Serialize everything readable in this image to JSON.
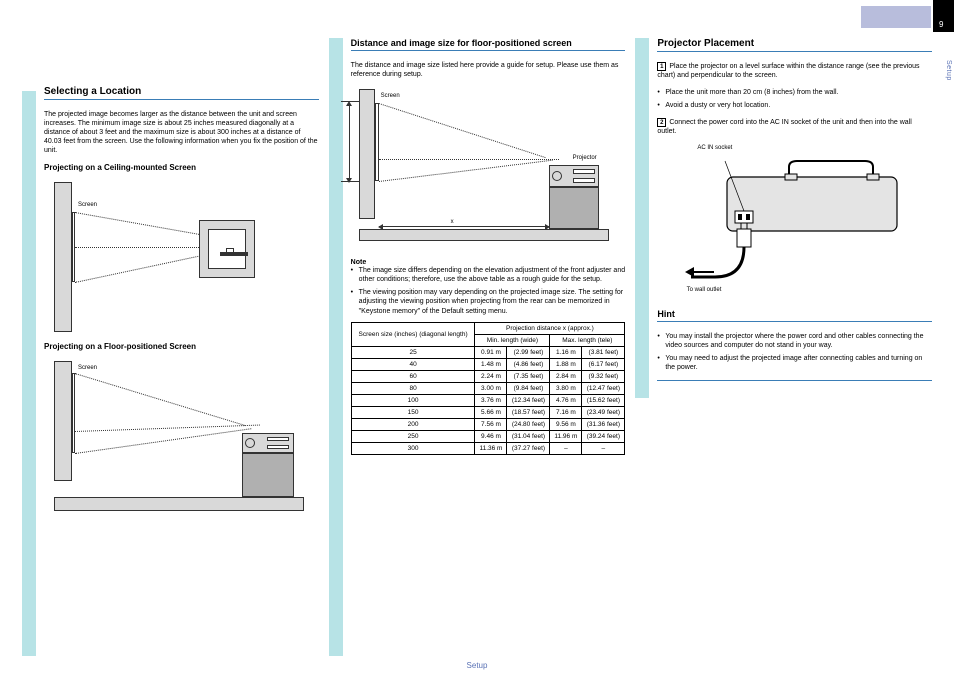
{
  "page": {
    "footer": "Setup",
    "side_label": "Setup",
    "page_number": "9"
  },
  "col1": {
    "title": "Selecting a Location",
    "p1": "The projected image becomes larger as the distance between the unit and screen increases. The minimum image size is about 25 inches measured diagonally at a distance of about 3 feet and the maximum size is about 300 inches at a distance of 40.03 feet from the screen. Use the following information when you fix the position of the unit.",
    "sub1": "Projecting on a Ceiling-mounted Screen",
    "dia1_label": "Screen",
    "sub2": "Projecting on a Floor-positioned Screen",
    "dia2_label": "Screen"
  },
  "col2": {
    "title": "Distance and image size for floor-positioned screen",
    "p1": "The distance and image size listed here provide a guide for setup. Please use them as reference during setup.",
    "dia": {
      "screen_label": "Screen",
      "x_label": "x",
      "proj_label": "Projector"
    },
    "note_label": "Note",
    "note1": "The image size differs depending on the elevation adjustment of the front adjuster and other conditions; therefore, use the above table as a rough guide for the setup.",
    "note2": "The viewing position may vary depending on the projected image size. The setting for adjusting the viewing position when projecting from the rear can be memorized in \"Keystone memory\" of the Default setting menu.",
    "table": {
      "type": "table",
      "hdr_size": "Screen size\n(inches)\n(diagonal length)",
      "hdr_dist": "Projection distance x\n(approx.)",
      "hdr_min": "Min. length\n(wide)",
      "hdr_max": "Max. length\n(tele)",
      "columns": [
        "size",
        "min_m",
        "min_ft",
        "max_m",
        "max_ft"
      ],
      "rows": [
        [
          "25",
          "0.91 m",
          "(2.99 feet)",
          "1.16 m",
          "(3.81 feet)"
        ],
        [
          "40",
          "1.48 m",
          "(4.86 feet)",
          "1.88 m",
          "(6.17 feet)"
        ],
        [
          "60",
          "2.24 m",
          "(7.35 feet)",
          "2.84 m",
          "(9.32 feet)"
        ],
        [
          "80",
          "3.00 m",
          "(9.84 feet)",
          "3.80 m",
          "(12.47 feet)"
        ],
        [
          "100",
          "3.76 m",
          "(12.34 feet)",
          "4.76 m",
          "(15.62 feet)"
        ],
        [
          "150",
          "5.66 m",
          "(18.57 feet)",
          "7.16 m",
          "(23.49 feet)"
        ],
        [
          "200",
          "7.56 m",
          "(24.80 feet)",
          "9.56 m",
          "(31.36 feet)"
        ],
        [
          "250",
          "9.46 m",
          "(31.04 feet)",
          "11.96 m",
          "(39.24 feet)"
        ],
        [
          "300",
          "11.36 m",
          "(37.27 feet)",
          "–",
          "–"
        ]
      ]
    }
  },
  "col3": {
    "title": "Projector Placement",
    "intro_num": "1",
    "intro_text": "Place the projector on a level surface within the distance range (see the previous chart) and perpendicular to the screen.",
    "b1": "Place the unit more than 20 cm (8 inches) from the wall.",
    "b2": "Avoid a dusty or very hot location.",
    "p2_num": "2",
    "p2_text": "Connect the power cord into the AC IN socket of the unit and then into the wall outlet.",
    "dia": {
      "label1": "AC IN socket",
      "label2": "To wall outlet",
      "arrow_color": "#000000",
      "body_fill": "#e4e4e4",
      "stroke": "#000000"
    },
    "hint": {
      "title": "Hint",
      "h1": "You may install the projector where the power cord and other cables connecting the video sources and computer do not stand in your way.",
      "h2": "You may need to adjust the projected image after connecting cables and turning on the power."
    }
  }
}
